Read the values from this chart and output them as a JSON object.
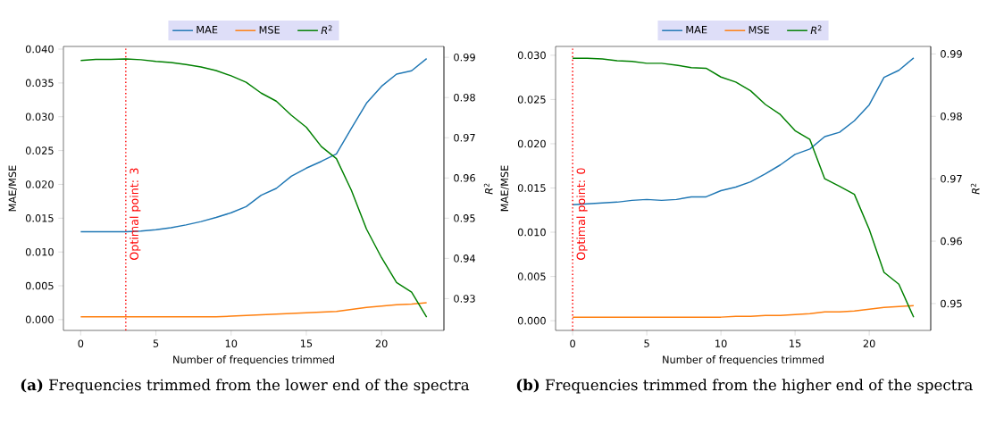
{
  "chart_data": [
    {
      "type": "line",
      "x": [
        0,
        1,
        2,
        3,
        4,
        5,
        6,
        7,
        8,
        9,
        10,
        11,
        12,
        13,
        14,
        15,
        16,
        17,
        18,
        19,
        20,
        21,
        22,
        23
      ],
      "xlabel": "Number of frequencies trimmed",
      "ylabel": "MAE/MSE",
      "y2label": "*R*$^{2}$",
      "legend": "top",
      "series": [
        {
          "name": "MAE",
          "color": "#1f77b4",
          "values": [
            0.013,
            0.013,
            0.013,
            0.013,
            0.0131,
            0.0133,
            0.0136,
            0.014,
            0.0145,
            0.0151,
            0.0158,
            0.0167,
            0.0184,
            0.0194,
            0.0212,
            0.0224,
            0.0234,
            0.0245,
            0.0283,
            0.032,
            0.0345,
            0.0363,
            0.0368,
            0.0386
          ]
        },
        {
          "name": "MSE",
          "color": "#ff7f0e",
          "values": [
            0.0004,
            0.0004,
            0.0004,
            0.0004,
            0.0004,
            0.0004,
            0.0004,
            0.0004,
            0.0004,
            0.0004,
            0.0005,
            0.0006,
            0.0007,
            0.0008,
            0.0009,
            0.001,
            0.0011,
            0.0012,
            0.0015,
            0.0018,
            0.002,
            0.0022,
            0.0023,
            0.0025
          ]
        },
        {
          "name": "*R*$^{2}$",
          "color": "#008000",
          "axis": "y2",
          "values": [
            0.9892,
            0.9895,
            0.9895,
            0.9896,
            0.9894,
            0.989,
            0.9887,
            0.9882,
            0.9876,
            0.9867,
            0.9854,
            0.9838,
            0.9811,
            0.9791,
            0.9756,
            0.9726,
            0.9678,
            0.9648,
            0.9569,
            0.9473,
            0.9402,
            0.934,
            0.9316,
            0.9254
          ]
        }
      ],
      "xlim": [
        -1.15,
        24.15
      ],
      "xticks": [
        0,
        5,
        10,
        15,
        20
      ],
      "ylim": [
        -0.0016,
        0.0404
      ],
      "yticks": [
        {
          "value": 0,
          "label": "0.000"
        },
        {
          "value": 0.005,
          "label": "0.005"
        },
        {
          "value": 0.01,
          "label": "0.010"
        },
        {
          "value": 0.015,
          "label": "0.015"
        },
        {
          "value": 0.02,
          "label": "0.020"
        },
        {
          "value": 0.025,
          "label": "0.025"
        },
        {
          "value": 0.03,
          "label": "0.030"
        },
        {
          "value": 0.035,
          "label": "0.035"
        },
        {
          "value": 0.04,
          "label": "0.040"
        }
      ],
      "y2lim": [
        0.9221,
        0.9927
      ],
      "y2ticks": [
        0.93,
        0.94,
        0.95,
        0.96,
        0.97,
        0.98,
        0.99
      ],
      "ref_lines": [
        {
          "axis": "x",
          "value": 3,
          "label": "Optimal point: 3",
          "color": "#ff0000",
          "line_style": "dotted"
        }
      ],
      "annotations": [
        "**(a)** Frequencies trimmed from the lower end of the spectra"
      ]
    },
    {
      "type": "line",
      "x": [
        0,
        1,
        2,
        3,
        4,
        5,
        6,
        7,
        8,
        9,
        10,
        11,
        12,
        13,
        14,
        15,
        16,
        17,
        18,
        19,
        20,
        21,
        22,
        23
      ],
      "xlabel": "Number of frequencies trimmed",
      "ylabel": "MAE/MSE",
      "y2label": "*R*$^{2}$",
      "legend": "top",
      "series": [
        {
          "name": "MAE",
          "color": "#1f77b4",
          "values": [
            0.0131,
            0.0132,
            0.0133,
            0.0134,
            0.0136,
            0.0137,
            0.0136,
            0.0137,
            0.014,
            0.014,
            0.0147,
            0.0151,
            0.0157,
            0.0166,
            0.0176,
            0.0188,
            0.0194,
            0.0208,
            0.0213,
            0.0226,
            0.0244,
            0.0275,
            0.0283,
            0.0297
          ]
        },
        {
          "name": "MSE",
          "color": "#ff7f0e",
          "values": [
            0.0004,
            0.0004,
            0.0004,
            0.0004,
            0.0004,
            0.0004,
            0.0004,
            0.0004,
            0.0004,
            0.0004,
            0.0004,
            0.0005,
            0.0005,
            0.0006,
            0.0006,
            0.0007,
            0.0008,
            0.001,
            0.001,
            0.0011,
            0.0013,
            0.0015,
            0.0016,
            0.0017
          ]
        },
        {
          "name": "*R*$^{2}$",
          "color": "#008000",
          "axis": "y2",
          "values": [
            0.9893,
            0.9893,
            0.9892,
            0.9889,
            0.9888,
            0.9885,
            0.9885,
            0.9882,
            0.9878,
            0.9877,
            0.9863,
            0.9855,
            0.9841,
            0.9819,
            0.9803,
            0.9777,
            0.9763,
            0.97,
            0.9688,
            0.9675,
            0.9619,
            0.955,
            0.9531,
            0.9478
          ]
        }
      ],
      "xlim": [
        -1.15,
        24.15
      ],
      "xticks": [
        0,
        5,
        10,
        15,
        20
      ],
      "ylim": [
        -0.0011,
        0.031
      ],
      "yticks": [
        {
          "value": 0,
          "label": "0.000"
        },
        {
          "value": 0.005,
          "label": "0.005"
        },
        {
          "value": 0.01,
          "label": "0.010"
        },
        {
          "value": 0.015,
          "label": "0.015"
        },
        {
          "value": 0.02,
          "label": "0.020"
        },
        {
          "value": 0.025,
          "label": "0.025"
        },
        {
          "value": 0.03,
          "label": "0.030"
        }
      ],
      "y2lim": [
        0.9457,
        0.9912
      ],
      "y2ticks": [
        0.95,
        0.96,
        0.97,
        0.98,
        0.99
      ],
      "ref_lines": [
        {
          "axis": "x",
          "value": 0,
          "label": "Optimal point: 0",
          "color": "#ff0000",
          "line_style": "dotted"
        }
      ],
      "annotations": [
        "**(b)** Frequencies trimmed from the higher end of the spectra"
      ]
    }
  ]
}
